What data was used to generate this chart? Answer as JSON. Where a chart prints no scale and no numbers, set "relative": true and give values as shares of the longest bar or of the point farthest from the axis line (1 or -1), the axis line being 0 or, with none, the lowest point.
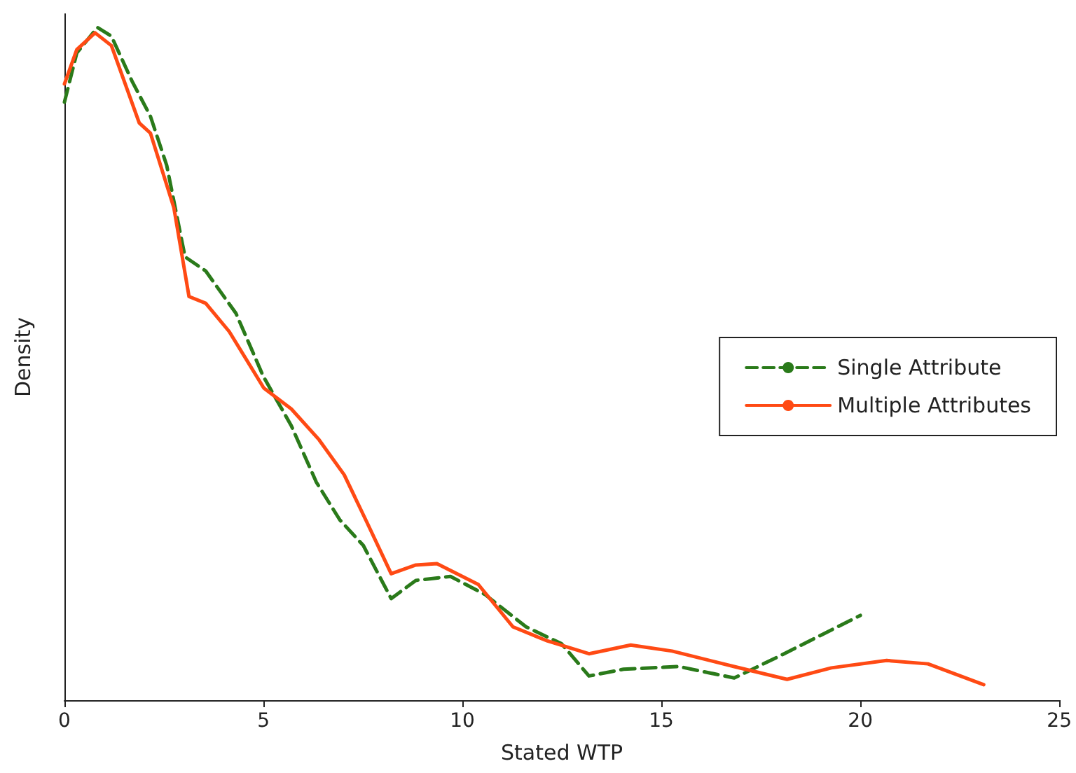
{
  "chart_data": {
    "type": "line",
    "relative": true,
    "xlabel": "Stated WTP",
    "ylabel": "Density",
    "xlim": [
      0,
      25
    ],
    "xticks": [
      0,
      5,
      10,
      15,
      20,
      25
    ],
    "legend": "right",
    "grid": false,
    "marker": "none",
    "series": [
      {
        "name": "Single Attribute",
        "color": "#2a7a1a",
        "line_style": "dashed",
        "x": [
          0,
          0.31,
          0.83,
          1.18,
          1.7,
          2.16,
          2.57,
          3.03,
          3.55,
          4.31,
          5.0,
          5.7,
          6.33,
          6.92,
          7.51,
          8.21,
          8.83,
          9.7,
          10.57,
          11.6,
          12.49,
          13.18,
          14.05,
          15.44,
          16.83,
          17.88,
          18.92,
          20.0
        ],
        "values": [
          0.889,
          0.962,
          1.0,
          0.987,
          0.92,
          0.868,
          0.795,
          0.659,
          0.638,
          0.575,
          0.481,
          0.408,
          0.324,
          0.268,
          0.23,
          0.151,
          0.178,
          0.184,
          0.157,
          0.109,
          0.084,
          0.036,
          0.046,
          0.05,
          0.033,
          0.063,
          0.094,
          0.126
        ]
      },
      {
        "name": "Multiple Attributes",
        "color": "#ff4a14",
        "line_style": "solid",
        "x": [
          0,
          0.31,
          0.77,
          1.18,
          1.88,
          2.16,
          2.75,
          3.13,
          3.55,
          4.14,
          5.01,
          5.7,
          6.4,
          7.03,
          7.62,
          8.21,
          8.83,
          9.36,
          10.4,
          11.27,
          12.14,
          13.18,
          14.23,
          15.27,
          16.83,
          18.16,
          19.27,
          20.66,
          21.7,
          23.1
        ],
        "values": [
          0.916,
          0.967,
          0.992,
          0.973,
          0.858,
          0.843,
          0.732,
          0.6,
          0.59,
          0.548,
          0.464,
          0.433,
          0.387,
          0.335,
          0.262,
          0.188,
          0.201,
          0.203,
          0.172,
          0.109,
          0.088,
          0.069,
          0.082,
          0.073,
          0.05,
          0.031,
          0.048,
          0.059,
          0.054,
          0.023
        ]
      }
    ]
  }
}
